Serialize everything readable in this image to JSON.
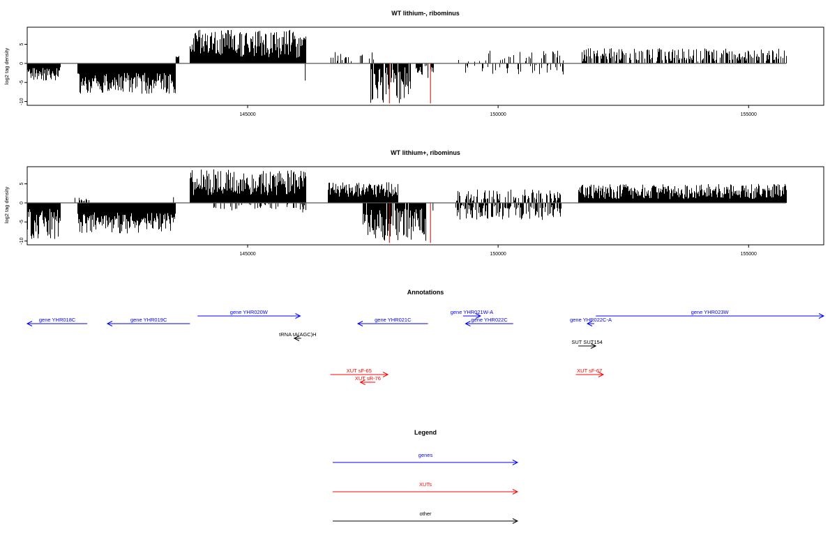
{
  "colors": {
    "genes": "#0000ff",
    "xuts": "#ff0000",
    "other": "#000000",
    "highlight": "#cc0000"
  },
  "chart_data": [
    {
      "type": "bar",
      "title": "WT lithium-, ribominus",
      "ylabel": "log2 tag density",
      "xlim": [
        140600,
        156500
      ],
      "ylim": [
        -11,
        9.5
      ],
      "yticks": [
        -10,
        -5,
        0,
        5
      ],
      "xticks": [
        145000,
        150000,
        155000
      ],
      "baseline_range": [
        140600,
        155750
      ],
      "segments": [
        {
          "start": 140600,
          "end": 141250,
          "min": 1.0,
          "max": 4.5,
          "sign": -1,
          "density": 1.0
        },
        {
          "start": 141600,
          "end": 143550,
          "min": 2.5,
          "max": 8.0,
          "sign": -1,
          "density": 1.0
        },
        {
          "start": 143570,
          "end": 143620,
          "min": 1.0,
          "max": 2.0,
          "sign": 1,
          "density": 1.0
        },
        {
          "start": 143850,
          "end": 146150,
          "min": 1.5,
          "max": 8.8,
          "sign": 1,
          "density": 1.0
        },
        {
          "start": 146650,
          "end": 147500,
          "min": 0.3,
          "max": 3.0,
          "sign": 1,
          "density": 0.25
        },
        {
          "start": 147450,
          "end": 148250,
          "min": 1.0,
          "max": 10.5,
          "sign": -1,
          "density": 0.9
        },
        {
          "start": 148350,
          "end": 148700,
          "min": 0.5,
          "max": 3.0,
          "sign": -1,
          "density": 0.6
        },
        {
          "start": 149200,
          "end": 151300,
          "min": 0.4,
          "max": 3.5,
          "sign": 1,
          "density": 0.2
        },
        {
          "start": 149300,
          "end": 151300,
          "min": 0.4,
          "max": 3.0,
          "sign": -1,
          "density": 0.15
        },
        {
          "start": 151650,
          "end": 155750,
          "min": 0.5,
          "max": 4.0,
          "sign": 1,
          "density": 0.6
        }
      ],
      "spikes": [
        {
          "x": 143570,
          "y": 1.8
        },
        {
          "x": 146150,
          "y": -4.5
        },
        {
          "x": 147600,
          "y": -3.5
        },
        {
          "x": 148600,
          "y": -3.8
        }
      ],
      "highlights": [
        {
          "x": 147830,
          "y": -10.5
        },
        {
          "x": 148650,
          "y": -10.5
        }
      ]
    },
    {
      "type": "bar",
      "title": "WT lithium+, ribominus",
      "ylabel": "log2 tag density",
      "xlim": [
        140600,
        156500
      ],
      "ylim": [
        -11,
        9.5
      ],
      "yticks": [
        -10,
        -5,
        0,
        5
      ],
      "xticks": [
        145000,
        150000,
        155000
      ],
      "baseline_range": [
        140600,
        155750
      ],
      "segments": [
        {
          "start": 140600,
          "end": 141250,
          "min": 1.5,
          "max": 9.5,
          "sign": -1,
          "density": 1.0
        },
        {
          "start": 141550,
          "end": 141850,
          "min": 0.5,
          "max": 1.5,
          "sign": 1,
          "density": 0.5
        },
        {
          "start": 141600,
          "end": 143550,
          "min": 2.5,
          "max": 8.0,
          "sign": -1,
          "density": 1.0
        },
        {
          "start": 143850,
          "end": 146150,
          "min": 2.0,
          "max": 8.8,
          "sign": 1,
          "density": 1.0
        },
        {
          "start": 144300,
          "end": 146150,
          "min": 0.3,
          "max": 2.0,
          "sign": -1,
          "density": 0.3
        },
        {
          "start": 146600,
          "end": 148000,
          "min": 1.5,
          "max": 5.5,
          "sign": 1,
          "density": 1.0
        },
        {
          "start": 147300,
          "end": 148550,
          "min": 1.5,
          "max": 10.0,
          "sign": -1,
          "density": 0.9
        },
        {
          "start": 149150,
          "end": 151250,
          "min": 0.5,
          "max": 3.5,
          "sign": 1,
          "density": 0.5
        },
        {
          "start": 149150,
          "end": 151250,
          "min": 0.5,
          "max": 4.5,
          "sign": -1,
          "density": 0.6
        },
        {
          "start": 151600,
          "end": 155750,
          "min": 1.0,
          "max": 5.0,
          "sign": 1,
          "density": 1.0
        }
      ],
      "spikes": [
        {
          "x": 143520,
          "y": 1.5
        },
        {
          "x": 146100,
          "y": -2.5
        },
        {
          "x": 148700,
          "y": -2.0
        }
      ],
      "highlights": [
        {
          "x": 147830,
          "y": -10.5
        },
        {
          "x": 148650,
          "y": -10.5
        }
      ]
    }
  ],
  "annotations": {
    "title": "Annotations",
    "xlim": [
      140600,
      156500
    ],
    "features": [
      {
        "label": "gene YHR018C",
        "class": "genes",
        "start": 140600,
        "end": 141800,
        "dir": -1,
        "row": 0
      },
      {
        "label": "gene YHR019C",
        "class": "genes",
        "start": 142200,
        "end": 143850,
        "dir": -1,
        "row": 0
      },
      {
        "label": "gene YHR020W",
        "class": "genes",
        "start": 144000,
        "end": 146050,
        "dir": 1,
        "row": 1
      },
      {
        "label": "tRNA tA(AGC)H",
        "class": "other",
        "start": 145950,
        "end": 146050,
        "dir": -1,
        "row": 2
      },
      {
        "label": "gene YHR021C",
        "class": "genes",
        "start": 147200,
        "end": 148600,
        "dir": -1,
        "row": 0
      },
      {
        "label": "gene YHR021W-A",
        "class": "genes",
        "start": 149300,
        "end": 149650,
        "dir": 1,
        "row": 1
      },
      {
        "label": "gene YHR022C",
        "class": "genes",
        "start": 149350,
        "end": 150300,
        "dir": -1,
        "row": 0
      },
      {
        "label": "gene YHR022C-A",
        "class": "genes",
        "start": 151800,
        "end": 151900,
        "dir": -1,
        "row": 0
      },
      {
        "label": "gene YHR023W",
        "class": "genes",
        "start": 151950,
        "end": 156500,
        "dir": 1,
        "row": 1
      },
      {
        "label": "SUT SUT154",
        "class": "other",
        "start": 151600,
        "end": 151950,
        "dir": 1,
        "row": 3
      },
      {
        "label": "XUT sF-65",
        "class": "xuts",
        "start": 146650,
        "end": 147800,
        "dir": 1,
        "row": 4
      },
      {
        "label": "XUT sR-76",
        "class": "xuts",
        "start": 147250,
        "end": 147550,
        "dir": -1,
        "row": 5
      },
      {
        "label": "XUT sF-67",
        "class": "xuts",
        "start": 151550,
        "end": 152100,
        "dir": 1,
        "row": 4
      }
    ]
  },
  "legend": {
    "title": "Legend",
    "entries": [
      {
        "label": "genes",
        "class": "genes"
      },
      {
        "label": "XUTs",
        "class": "xuts"
      },
      {
        "label": "other",
        "class": "other"
      }
    ]
  }
}
